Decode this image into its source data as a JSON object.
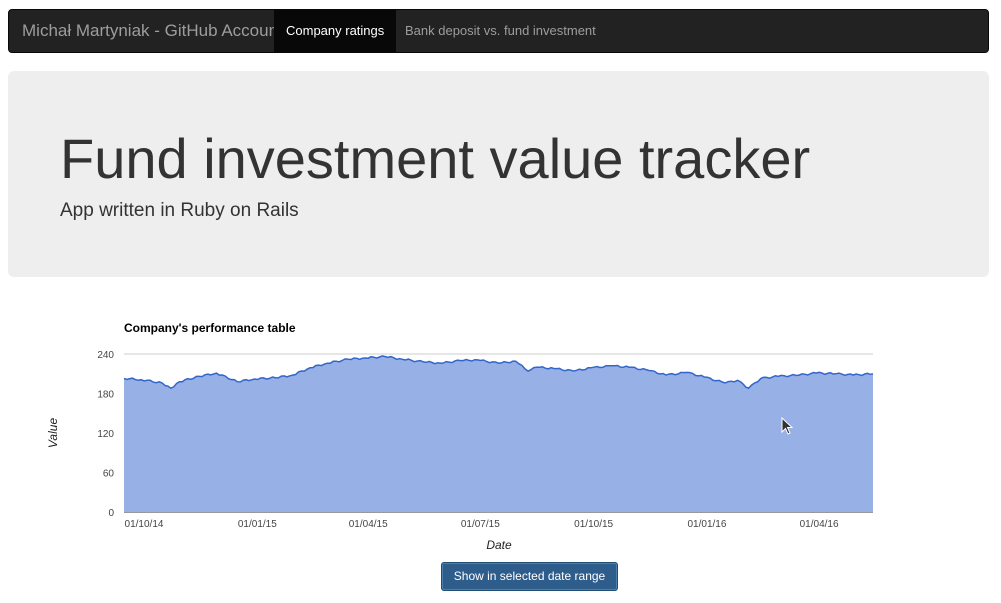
{
  "navbar": {
    "brand": "Michał Martyniak - GitHub Account",
    "items": [
      {
        "label": "Company ratings",
        "active": true
      },
      {
        "label": "Bank deposit vs. fund investment",
        "active": false
      }
    ]
  },
  "jumbotron": {
    "title": "Fund investment value tracker",
    "subtitle": "App written in Ruby on Rails"
  },
  "chart_data": {
    "type": "area",
    "title": "Company's performance table",
    "xlabel": "Date",
    "ylabel": "Value",
    "ylim": [
      0,
      240
    ],
    "yticks": [
      0,
      60,
      120,
      180,
      240
    ],
    "xlim": [
      "2014-10-01",
      "2016-05-31"
    ],
    "xticks": [
      "01/10/14",
      "01/01/15",
      "01/04/15",
      "01/07/15",
      "01/10/15",
      "01/01/16",
      "01/04/16"
    ],
    "grid": true,
    "legend": "none",
    "color": "#3366cc",
    "fill": "#97b0e6",
    "series": [
      {
        "x": [
          "2014-10-01",
          "2014-10-15",
          "2014-11-01",
          "2014-11-08",
          "2014-11-15",
          "2014-12-01",
          "2014-12-15",
          "2015-01-01",
          "2015-01-15",
          "2015-02-01",
          "2015-02-15",
          "2015-03-01",
          "2015-03-15",
          "2015-04-01",
          "2015-04-15",
          "2015-05-01",
          "2015-05-15",
          "2015-06-01",
          "2015-06-15",
          "2015-07-01",
          "2015-07-15",
          "2015-08-01",
          "2015-08-15",
          "2015-08-25",
          "2015-09-01",
          "2015-09-15",
          "2015-10-01",
          "2015-10-15",
          "2015-11-01",
          "2015-11-15",
          "2015-12-01",
          "2015-12-15",
          "2016-01-01",
          "2016-01-15",
          "2016-02-01",
          "2016-02-11",
          "2016-02-20",
          "2016-03-01",
          "2016-03-15",
          "2016-04-01",
          "2016-04-15",
          "2016-05-01",
          "2016-05-15",
          "2016-05-31"
        ],
        "values": [
          203,
          201,
          196,
          188,
          198,
          206,
          211,
          198,
          202,
          204,
          208,
          219,
          226,
          232,
          234,
          236,
          232,
          228,
          226,
          230,
          231,
          226,
          229,
          214,
          220,
          218,
          214,
          219,
          222,
          220,
          215,
          208,
          212,
          205,
          196,
          200,
          188,
          203,
          206,
          208,
          211,
          210,
          208,
          210
        ]
      }
    ]
  },
  "button": {
    "label": "Show in selected date range"
  }
}
